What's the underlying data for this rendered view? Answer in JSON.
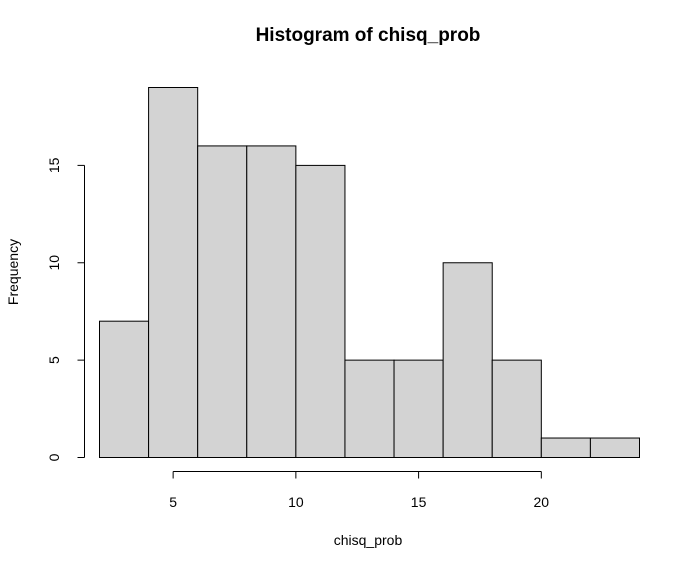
{
  "chart_data": {
    "type": "bar",
    "title": "Histogram of chisq_prob",
    "xlabel": "chisq_prob",
    "ylabel": "Frequency",
    "bin_edges": [
      2,
      4,
      6,
      8,
      10,
      12,
      14,
      16,
      18,
      20,
      22,
      24
    ],
    "values": [
      7,
      19,
      16,
      16,
      15,
      5,
      5,
      10,
      5,
      1,
      1
    ],
    "xlim": [
      2,
      24
    ],
    "ylim": [
      0,
      19
    ],
    "x_ticks": [
      5,
      10,
      15,
      20
    ],
    "y_ticks": [
      0,
      5,
      10,
      15
    ],
    "bar_color": "#d3d3d3",
    "edge_color": "#000000",
    "grid": false
  }
}
